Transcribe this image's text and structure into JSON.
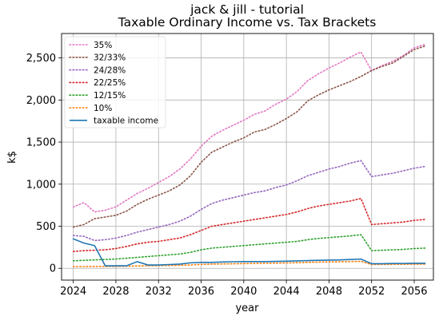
{
  "chart_data": {
    "type": "line",
    "title": "jack & jill - tutorial",
    "subtitle": "Taxable Ordinary Income vs. Tax Brackets",
    "xlabel": "year",
    "ylabel": "k$",
    "xlim": [
      2022.9,
      2057.8
    ],
    "ylim": [
      -140,
      2790
    ],
    "xticks": [
      2024,
      2028,
      2032,
      2036,
      2040,
      2044,
      2048,
      2052,
      2056
    ],
    "xtick_labels": [
      "2024",
      "2028",
      "2032",
      "2036",
      "2040",
      "2044",
      "2048",
      "2052",
      "2056"
    ],
    "yticks": [
      0,
      500,
      1000,
      1500,
      2000,
      2500
    ],
    "ytick_labels": [
      "0",
      "500",
      "1,000",
      "1,500",
      "2,000",
      "2,500"
    ],
    "grid": true,
    "legend_position": "upper-left",
    "x": [
      2024,
      2025,
      2026,
      2027,
      2028,
      2029,
      2030,
      2031,
      2032,
      2033,
      2034,
      2035,
      2036,
      2037,
      2038,
      2039,
      2040,
      2041,
      2042,
      2043,
      2044,
      2045,
      2046,
      2047,
      2048,
      2049,
      2050,
      2051,
      2052,
      2053,
      2054,
      2055,
      2056,
      2057
    ],
    "series": [
      {
        "name": "35%",
        "color": "#e377c2",
        "style": "dotted",
        "values": [
          730,
          780,
          670,
          690,
          730,
          810,
          890,
          950,
          1020,
          1090,
          1180,
          1300,
          1450,
          1570,
          1640,
          1700,
          1760,
          1830,
          1870,
          1950,
          2010,
          2100,
          2230,
          2310,
          2380,
          2440,
          2510,
          2570,
          2350,
          2410,
          2460,
          2530,
          2620,
          2660
        ]
      },
      {
        "name": "32/33%",
        "color": "#8c564b",
        "style": "dotted",
        "values": [
          490,
          520,
          590,
          610,
          630,
          680,
          760,
          820,
          870,
          920,
          990,
          1100,
          1260,
          1380,
          1440,
          1500,
          1550,
          1620,
          1650,
          1710,
          1780,
          1860,
          1990,
          2060,
          2120,
          2170,
          2220,
          2280,
          2350,
          2400,
          2440,
          2520,
          2600,
          2640
        ]
      },
      {
        "name": "24/28%",
        "color": "#9467bd",
        "style": "dotted",
        "values": [
          390,
          380,
          330,
          340,
          360,
          390,
          430,
          460,
          490,
          520,
          560,
          620,
          700,
          770,
          810,
          840,
          870,
          900,
          920,
          960,
          990,
          1040,
          1100,
          1140,
          1180,
          1210,
          1250,
          1280,
          1090,
          1110,
          1130,
          1160,
          1190,
          1210
        ]
      },
      {
        "name": "22/25%",
        "color": "#d62728",
        "style": "dotted",
        "values": [
          200,
          210,
          215,
          220,
          235,
          260,
          290,
          310,
          320,
          340,
          360,
          400,
          450,
          500,
          520,
          540,
          560,
          580,
          600,
          620,
          640,
          670,
          710,
          740,
          760,
          780,
          800,
          830,
          520,
          530,
          540,
          550,
          570,
          580
        ]
      },
      {
        "name": "12/15%",
        "color": "#2ca02c",
        "style": "dotted",
        "values": [
          90,
          95,
          100,
          105,
          110,
          120,
          130,
          140,
          150,
          160,
          170,
          190,
          220,
          240,
          250,
          260,
          270,
          280,
          290,
          300,
          310,
          320,
          340,
          355,
          365,
          375,
          385,
          400,
          210,
          215,
          220,
          225,
          235,
          240
        ]
      },
      {
        "name": "10%",
        "color": "#ff7f0e",
        "style": "dotted",
        "values": [
          20,
          20,
          22,
          22,
          23,
          25,
          28,
          30,
          32,
          34,
          36,
          40,
          46,
          50,
          52,
          54,
          56,
          58,
          60,
          62,
          64,
          67,
          71,
          74,
          76,
          78,
          80,
          83,
          45,
          46,
          47,
          48,
          49,
          50
        ]
      },
      {
        "name": "taxable income",
        "color": "#1f77b4",
        "style": "solid",
        "values": [
          350,
          300,
          270,
          30,
          30,
          30,
          80,
          40,
          40,
          45,
          50,
          65,
          70,
          70,
          75,
          78,
          80,
          80,
          80,
          82,
          85,
          88,
          92,
          95,
          98,
          100,
          105,
          110,
          55,
          55,
          57,
          58,
          60,
          60
        ]
      }
    ]
  }
}
